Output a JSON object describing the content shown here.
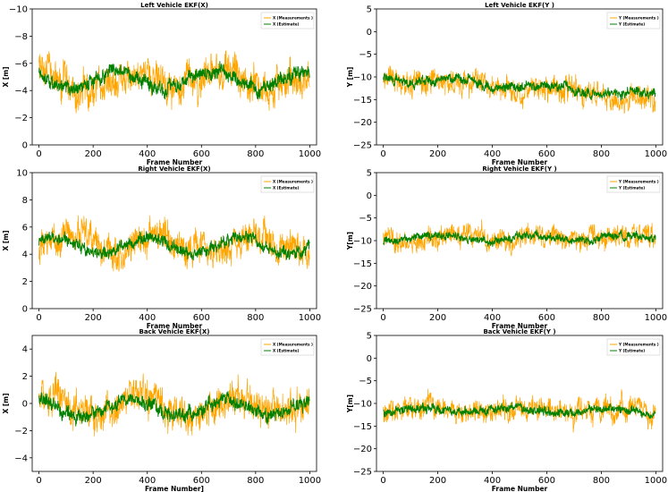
{
  "colors": {
    "measure": "#ffa500",
    "estimate": "#008000",
    "axis": "#000000",
    "background": "#ffffff"
  },
  "chart_data": [
    {
      "type": "line",
      "title": "Left Vehicle EKF(X)",
      "xlabel": "Frame Number",
      "ylabel": "X [m]",
      "xlim": [
        -25,
        1025
      ],
      "ylim": [
        0,
        -10
      ],
      "inverted_y": true,
      "xticks": [
        0,
        200,
        400,
        600,
        800,
        1000
      ],
      "yticks": [
        0,
        -2,
        -4,
        -6,
        -8,
        -10
      ],
      "legend": "top-right",
      "series": [
        {
          "name": "X (Measurements )",
          "color": "#ffa500",
          "n": 1000,
          "center": -4.8,
          "trend": 0,
          "jitter": 1.7,
          "seed": 11
        },
        {
          "name": "X (Estimate)",
          "color": "#008000",
          "n": 1000,
          "center": -4.8,
          "trend": 0,
          "jitter": 0.7,
          "seed": 12
        }
      ]
    },
    {
      "type": "line",
      "title": "Left Vehicle EKF(Y )",
      "xlabel": "Frame Number",
      "ylabel": "Y [m]",
      "xlim": [
        -25,
        1025
      ],
      "ylim": [
        -25,
        5
      ],
      "inverted_y": false,
      "xticks": [
        0,
        200,
        400,
        600,
        800,
        1000
      ],
      "yticks": [
        5,
        0,
        -5,
        -10,
        -15,
        -20,
        -25
      ],
      "legend": "top-right",
      "series": [
        {
          "name": "Y (Measurements )",
          "color": "#ffa500",
          "n": 1000,
          "center": -10,
          "trend": -5,
          "jitter": 3.5,
          "seed": 21
        },
        {
          "name": "Y (Estimate)",
          "color": "#008000",
          "n": 1000,
          "center": -10,
          "trend": -4,
          "jitter": 1.4,
          "seed": 22
        }
      ]
    },
    {
      "type": "line",
      "title": "Right Vehicle EKF(X)",
      "xlabel": "Frame Number",
      "ylabel": "X [m]",
      "xlim": [
        -25,
        1025
      ],
      "ylim": [
        0,
        10
      ],
      "inverted_y": false,
      "xticks": [
        0,
        200,
        400,
        600,
        800,
        1000
      ],
      "yticks": [
        0,
        2,
        4,
        6,
        8,
        10
      ],
      "legend": "top-right",
      "series": [
        {
          "name": "X (Measurements )",
          "color": "#ffa500",
          "n": 1000,
          "center": 4.8,
          "trend": 0,
          "jitter": 1.6,
          "seed": 31
        },
        {
          "name": "X (Estimate)",
          "color": "#008000",
          "n": 1000,
          "center": 4.6,
          "trend": 0,
          "jitter": 0.6,
          "seed": 32
        }
      ]
    },
    {
      "type": "line",
      "title": "Right Vehicle EKF(Y )",
      "xlabel": "Frame Number",
      "ylabel": "Y[m]",
      "xlim": [
        -25,
        1025
      ],
      "ylim": [
        -25,
        5
      ],
      "inverted_y": false,
      "xticks": [
        0,
        200,
        400,
        600,
        800,
        1000
      ],
      "yticks": [
        5,
        0,
        -5,
        -10,
        -15,
        -20,
        -25
      ],
      "legend": "top-right",
      "series": [
        {
          "name": "Y (Measurements )",
          "color": "#ffa500",
          "n": 1000,
          "center": -9.5,
          "trend": 0,
          "jitter": 3.2,
          "seed": 41
        },
        {
          "name": "Y (Estimate)",
          "color": "#008000",
          "n": 1000,
          "center": -9.5,
          "trend": 0,
          "jitter": 1.2,
          "seed": 42
        }
      ]
    },
    {
      "type": "line",
      "title": "Back Vehicle EKF(X)",
      "xlabel": "Frame Number]",
      "ylabel": "X [m]",
      "xlim": [
        -25,
        1025
      ],
      "ylim": [
        -5,
        5
      ],
      "inverted_y": false,
      "xticks": [
        0,
        200,
        400,
        600,
        800,
        1000
      ],
      "yticks": [
        4,
        2,
        0,
        -2,
        -4
      ],
      "legend": "top-right",
      "series": [
        {
          "name": "X (Measurements )",
          "color": "#ffa500",
          "n": 1000,
          "center": -0.2,
          "trend": 0,
          "jitter": 1.7,
          "seed": 51
        },
        {
          "name": "X (Estimate)",
          "color": "#008000",
          "n": 1000,
          "center": -0.3,
          "trend": 0,
          "jitter": 0.7,
          "seed": 52
        }
      ]
    },
    {
      "type": "line",
      "title": "Back Vehicle EKF(Y )",
      "xlabel": "Frame Number",
      "ylabel": "Y[m]",
      "xlim": [
        -25,
        1025
      ],
      "ylim": [
        -25,
        5
      ],
      "inverted_y": false,
      "xticks": [
        0,
        200,
        400,
        600,
        800,
        1000
      ],
      "yticks": [
        5,
        0,
        -5,
        -10,
        -15,
        -20,
        -25
      ],
      "legend": "top-right",
      "series": [
        {
          "name": "Y (Measurements )",
          "color": "#ffa500",
          "n": 1000,
          "center": -11.5,
          "trend": 0,
          "jitter": 3.4,
          "seed": 61
        },
        {
          "name": "Y (Estimate)",
          "color": "#008000",
          "n": 1000,
          "center": -11.5,
          "trend": 0,
          "jitter": 1.3,
          "seed": 62
        }
      ]
    }
  ]
}
